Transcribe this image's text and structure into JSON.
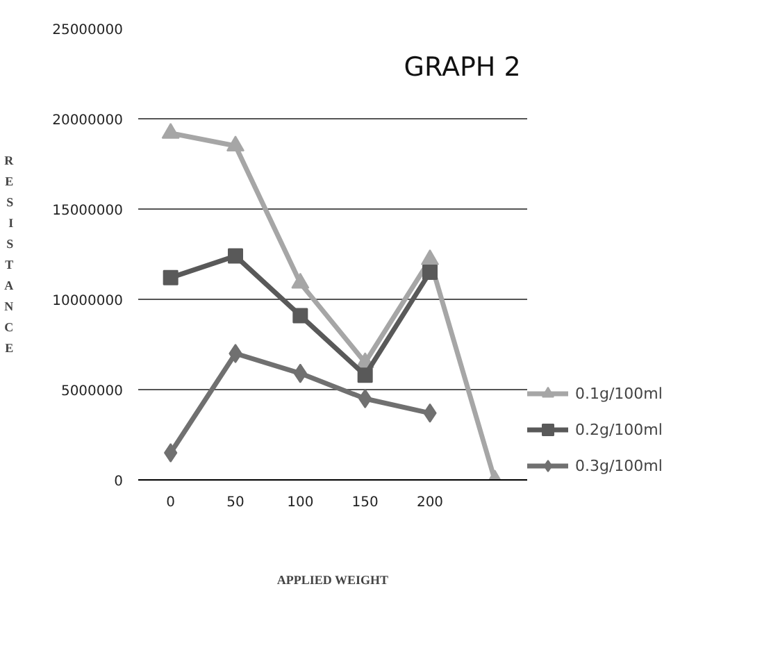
{
  "chart_data": {
    "type": "line",
    "title": "GRAPH 2",
    "xlabel": "APPLIED WEIGHT",
    "ylabel": "RESISTANCE",
    "categories": [
      "0",
      "50",
      "100",
      "150",
      "200",
      null
    ],
    "series": [
      {
        "name": "0.1g/100ml",
        "color": "#a6a6a6",
        "marker": "triangle",
        "values": [
          19200000,
          18500000,
          10900000,
          6500000,
          12200000,
          0
        ]
      },
      {
        "name": "0.2g/100ml",
        "color": "#595959",
        "marker": "square",
        "values": [
          11200000,
          12400000,
          9100000,
          5800000,
          11500000,
          null
        ]
      },
      {
        "name": "0.3g/100ml",
        "color": "#707070",
        "marker": "diamond",
        "values": [
          1500000,
          7000000,
          5900000,
          4500000,
          3700000,
          null
        ]
      }
    ],
    "ylim": [
      0,
      25000000
    ],
    "yticks": [
      0,
      5000000,
      10000000,
      15000000,
      20000000,
      25000000
    ],
    "grid": "y",
    "legend": "right"
  }
}
